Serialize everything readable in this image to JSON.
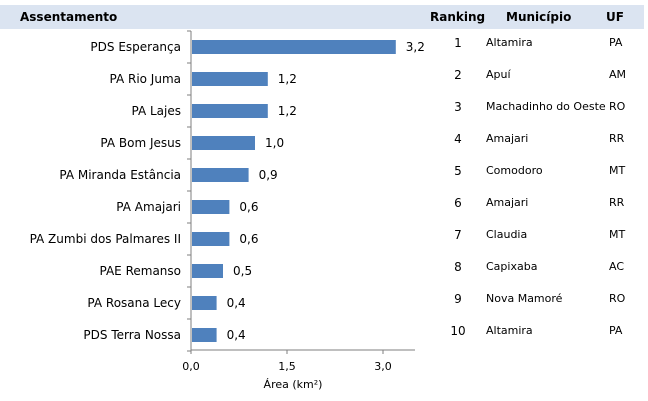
{
  "header": {
    "assentamento": "Assentamento",
    "ranking": "Ranking",
    "municipio": "Município",
    "uf": "UF"
  },
  "chart_data": {
    "type": "bar",
    "orientation": "horizontal",
    "categories": [
      "PDS Esperança",
      "PA Rio Juma",
      "PA Lajes",
      "PA Bom Jesus",
      "PA Miranda Estância",
      "PA Amajari",
      "PA Zumbi dos Palmares II",
      "PAE Remanso",
      "PA Rosana Lecy",
      "PDS Terra Nossa"
    ],
    "values": [
      3.2,
      1.2,
      1.2,
      1.0,
      0.9,
      0.6,
      0.6,
      0.5,
      0.4,
      0.4
    ],
    "value_labels": [
      "3,2",
      "1,2",
      "1,2",
      "1,0",
      "0,9",
      "0,6",
      "0,6",
      "0,5",
      "0,4",
      "0,4"
    ],
    "xlabel": "Área (km²)",
    "xlim": [
      0,
      3.5
    ],
    "xticks": [
      0,
      1.5,
      3.0
    ],
    "xtick_labels": [
      "0,0",
      "1,5",
      "3,0"
    ],
    "bar_color": "#4f81bd",
    "grid": false
  },
  "table": {
    "rows": [
      {
        "rank": "1",
        "municipio": "Altamira",
        "uf": "PA"
      },
      {
        "rank": "2",
        "municipio": "Apuí",
        "uf": "AM"
      },
      {
        "rank": "3",
        "municipio": "Machadinho do Oeste",
        "uf": "RO"
      },
      {
        "rank": "4",
        "municipio": "Amajari",
        "uf": "RR"
      },
      {
        "rank": "5",
        "municipio": "Comodoro",
        "uf": "MT"
      },
      {
        "rank": "6",
        "municipio": "Amajari",
        "uf": "RR"
      },
      {
        "rank": "7",
        "municipio": "Claudia",
        "uf": "MT"
      },
      {
        "rank": "8",
        "municipio": "Capixaba",
        "uf": "AC"
      },
      {
        "rank": "9",
        "municipio": "Nova Mamoré",
        "uf": "RO"
      },
      {
        "rank": "10",
        "municipio": "Altamira",
        "uf": "PA"
      }
    ]
  }
}
